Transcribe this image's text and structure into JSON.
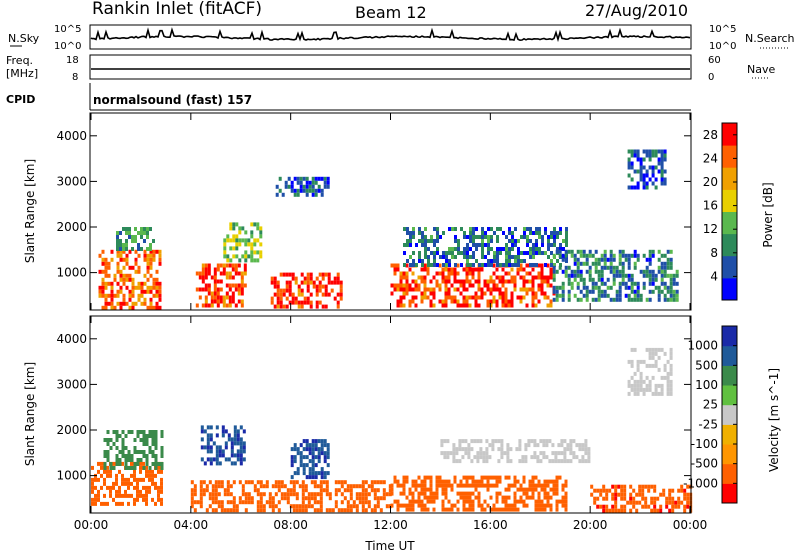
{
  "header": {
    "site": "Rankin Inlet (fitACF)",
    "beam": "Beam 12",
    "date": "27/Aug/2010"
  },
  "top_panels": {
    "nsky_label": "N.Sky",
    "nsky_ticks": [
      "10^5",
      "10^0"
    ],
    "nsearch_label": "N.Search",
    "nsearch_ticks": [
      "10^5",
      "10^0"
    ],
    "freq_label_1": "Freq.",
    "freq_label_2": "[MHz]",
    "freq_ticks": [
      "18",
      "8"
    ],
    "nave_label": "Nave",
    "nave_ticks": [
      "60",
      "0"
    ],
    "cpid_label": "CPID",
    "cpid_value": "normalsound (fast) 157"
  },
  "colors": {
    "power": [
      "#0000ff",
      "#1f4fa8",
      "#2d8a5a",
      "#5ab84e",
      "#e8d000",
      "#f0a000",
      "#ff6000",
      "#ff0000"
    ],
    "velocity": [
      "#ff0000",
      "#ff6000",
      "#ff9600",
      "#f0b000",
      "#c8c8c8",
      "#60c040",
      "#3a8a4a",
      "#1f5a99",
      "#1a2aa8"
    ]
  },
  "chart_data": [
    {
      "type": "heatmap",
      "title": "",
      "xlabel": "Time UT",
      "ylabel": "Slant Range [km]",
      "x_ticks": [
        "00:00",
        "04:00",
        "08:00",
        "12:00",
        "16:00",
        "20:00",
        "00:00"
      ],
      "x_range_hours": [
        0,
        24
      ],
      "ylim": [
        180,
        4500
      ],
      "y_ticks": [
        "1000",
        "2000",
        "3000",
        "4000"
      ],
      "colorbar_label": "Power [dB]",
      "colorbar_ticks": [
        "4",
        "8",
        "12",
        "16",
        "20",
        "24",
        "28"
      ],
      "colorbar_range": [
        0,
        30
      ],
      "regions": [
        {
          "t": [
            0.3,
            2.8
          ],
          "r": [
            250,
            1500
          ],
          "value": 24
        },
        {
          "t": [
            1.0,
            2.5
          ],
          "r": [
            1500,
            2000
          ],
          "value": 10
        },
        {
          "t": [
            4.2,
            6.2
          ],
          "r": [
            250,
            1200
          ],
          "value": 26
        },
        {
          "t": [
            5.3,
            6.8
          ],
          "r": [
            1300,
            2100
          ],
          "value": 14
        },
        {
          "t": [
            7.2,
            10.0
          ],
          "r": [
            250,
            1000
          ],
          "value": 27
        },
        {
          "t": [
            7.4,
            9.5
          ],
          "r": [
            2700,
            3100
          ],
          "value": 6
        },
        {
          "t": [
            12.0,
            18.5
          ],
          "r": [
            250,
            1200
          ],
          "value": 26
        },
        {
          "t": [
            12.5,
            19.0
          ],
          "r": [
            1200,
            2000
          ],
          "value": 7
        },
        {
          "t": [
            18.5,
            23.5
          ],
          "r": [
            400,
            1500
          ],
          "value": 8
        },
        {
          "t": [
            21.5,
            23.0
          ],
          "r": [
            2900,
            3700
          ],
          "value": 6
        }
      ]
    },
    {
      "type": "heatmap",
      "title": "",
      "xlabel": "Time UT",
      "ylabel": "Slant Range [km]",
      "x_ticks": [
        "00:00",
        "04:00",
        "08:00",
        "12:00",
        "16:00",
        "20:00",
        "00:00"
      ],
      "x_range_hours": [
        0,
        24
      ],
      "ylim": [
        180,
        4500
      ],
      "y_ticks": [
        "1000",
        "2000",
        "3000",
        "4000"
      ],
      "colorbar_label": "Velocity [m s^-1]",
      "colorbar_ticks": [
        "1000",
        "500",
        "100",
        "25",
        "-25",
        "-100",
        "-500",
        "-1000"
      ],
      "regions": [
        {
          "t": [
            0.0,
            2.8
          ],
          "r": [
            400,
            1300
          ],
          "value": -300
        },
        {
          "t": [
            0.5,
            2.8
          ],
          "r": [
            1200,
            2000
          ],
          "value": 300
        },
        {
          "t": [
            4.4,
            6.2
          ],
          "r": [
            1300,
            2100
          ],
          "value": 900
        },
        {
          "t": [
            8.0,
            9.5
          ],
          "r": [
            1000,
            1800
          ],
          "value": 900
        },
        {
          "t": [
            4.0,
            12.0
          ],
          "r": [
            250,
            900
          ],
          "value": -200
        },
        {
          "t": [
            12.0,
            19.0
          ],
          "r": [
            250,
            1000
          ],
          "value": -300
        },
        {
          "t": [
            14.0,
            20.0
          ],
          "r": [
            1300,
            1800
          ],
          "value": 0
        },
        {
          "t": [
            21.5,
            23.2
          ],
          "r": [
            2800,
            3800
          ],
          "value": 0
        },
        {
          "t": [
            20.0,
            24.0
          ],
          "r": [
            250,
            800
          ],
          "value": -400
        }
      ]
    }
  ]
}
